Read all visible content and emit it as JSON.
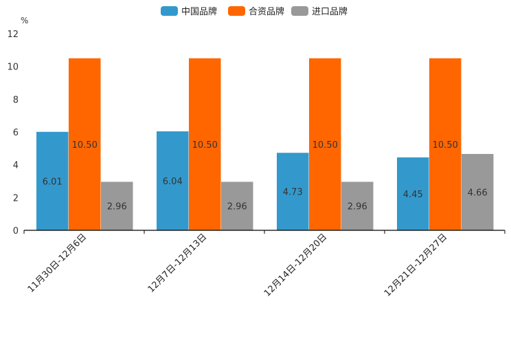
{
  "chart_data": {
    "type": "bar",
    "title": "",
    "xlabel": "",
    "ylabel": "%",
    "ylim": [
      0,
      12
    ],
    "yticks": [
      "0",
      "2",
      "4",
      "6",
      "8",
      "10",
      "12"
    ],
    "legend_position": "top-center",
    "categories": [
      "11月30日-12月6日",
      "12月7日-12月13日",
      "12月14日-12月20日",
      "12月21日-12月27日"
    ],
    "series": [
      {
        "name": "中国品牌",
        "color": "#3399cc",
        "values": [
          6.01,
          6.04,
          4.73,
          4.45
        ],
        "labels": [
          "6.01",
          "6.04",
          "4.73",
          "4.45"
        ]
      },
      {
        "name": "合资品牌",
        "color": "#ff6600",
        "values": [
          10.5,
          10.5,
          10.5,
          10.5
        ],
        "labels": [
          "10.50",
          "10.50",
          "10.50",
          "10.50"
        ]
      },
      {
        "name": "进口品牌",
        "color": "#999999",
        "values": [
          2.96,
          2.96,
          2.96,
          4.66
        ],
        "labels": [
          "2.96",
          "2.96",
          "2.96",
          "4.66"
        ]
      }
    ]
  }
}
